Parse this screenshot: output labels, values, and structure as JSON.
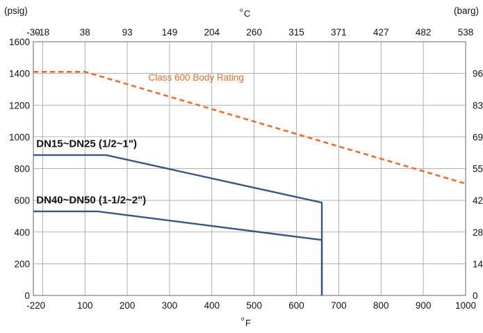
{
  "chart_data": {
    "type": "line",
    "title": "",
    "units": {
      "left": "(psig)",
      "right": "(barg)",
      "top": "°C",
      "bottom": "°F",
      "degree_symbol": "o",
      "top_unit_letter": "C",
      "bottom_unit_letter": "F"
    },
    "x_axis_bottom": {
      "label": "°F",
      "range": [
        -22,
        1000
      ],
      "ticks": [
        -22,
        0,
        100,
        200,
        300,
        400,
        500,
        600,
        700,
        800,
        900,
        1000
      ],
      "tick_labels": [
        "-22",
        "0",
        "100",
        "200",
        "300",
        "400",
        "500",
        "600",
        "700",
        "800",
        "900",
        "1000"
      ]
    },
    "x_axis_top": {
      "label": "°C",
      "ticks_at_f": [
        -22,
        0,
        100,
        200,
        300,
        400,
        500,
        600,
        700,
        800,
        900,
        1000
      ],
      "tick_labels": [
        "-30",
        "-18",
        "38",
        "93",
        "149",
        "204",
        "260",
        "315",
        "371",
        "427",
        "482",
        "538"
      ]
    },
    "y_axis_left": {
      "label": "(psig)",
      "range": [
        0,
        1600
      ],
      "ticks": [
        0,
        200,
        400,
        600,
        800,
        1000,
        1200,
        1400,
        1600
      ],
      "tick_labels": [
        "0",
        "200",
        "400",
        "600",
        "800",
        "1000",
        "1200",
        "1400",
        "1600"
      ]
    },
    "y_axis_right": {
      "label": "(barg)",
      "ticks_at_psig": [
        0,
        200,
        400,
        600,
        800,
        1000,
        1200,
        1400
      ],
      "tick_labels": [
        "0",
        "14",
        "28",
        "42",
        "55",
        "69",
        "83",
        "96"
      ]
    },
    "grid": true,
    "series": [
      {
        "name": "Class 600 Body Rating",
        "style": "dashed",
        "color": "#ef6c2e",
        "x": [
          -22,
          100,
          1000
        ],
        "y": [
          1410,
          1410,
          705
        ]
      },
      {
        "name": "DN15~DN25 (1/2~1\")",
        "style": "solid",
        "color": "#36577f",
        "x": [
          -22,
          150,
          660,
          660
        ],
        "y": [
          885,
          885,
          585,
          0
        ]
      },
      {
        "name": "DN40~DN50 (1-1/2~2\")",
        "style": "solid",
        "color": "#36577f",
        "x": [
          -22,
          130,
          660,
          660
        ],
        "y": [
          530,
          530,
          350,
          0
        ]
      }
    ],
    "annotations": [
      {
        "text": "Class 600 Body Rating",
        "series": 0,
        "x": 250,
        "y": 1355
      },
      {
        "text": "DN15~DN25 (1/2~1\")",
        "series": 1,
        "x": -15,
        "y": 935
      },
      {
        "text": "DN40~DN50 (1-1/2~2\")",
        "series": 2,
        "x": -15,
        "y": 580
      }
    ],
    "colors": {
      "grid": "#9a9a9a",
      "frame": "#7f7f7f",
      "text": "#111111"
    }
  }
}
